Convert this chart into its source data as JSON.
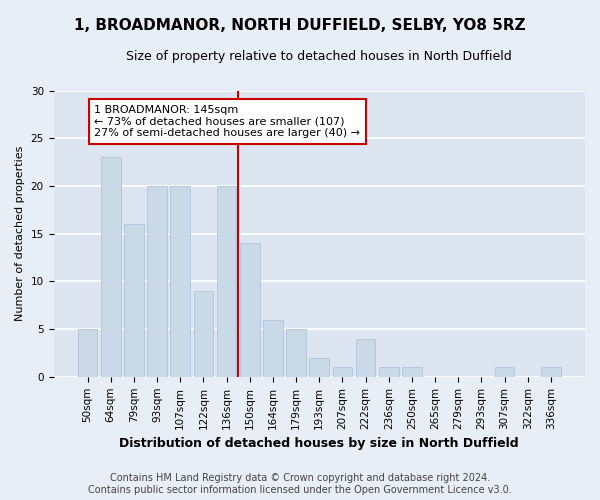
{
  "title": "1, BROADMANOR, NORTH DUFFIELD, SELBY, YO8 5RZ",
  "subtitle": "Size of property relative to detached houses in North Duffield",
  "xlabel": "Distribution of detached houses by size in North Duffield",
  "ylabel": "Number of detached properties",
  "categories": [
    "50sqm",
    "64sqm",
    "79sqm",
    "93sqm",
    "107sqm",
    "122sqm",
    "136sqm",
    "150sqm",
    "164sqm",
    "179sqm",
    "193sqm",
    "207sqm",
    "222sqm",
    "236sqm",
    "250sqm",
    "265sqm",
    "279sqm",
    "293sqm",
    "307sqm",
    "322sqm",
    "336sqm"
  ],
  "values": [
    5,
    23,
    16,
    20,
    20,
    9,
    20,
    14,
    6,
    5,
    2,
    1,
    4,
    1,
    1,
    0,
    0,
    0,
    1,
    0,
    1
  ],
  "bar_color": "#c9d9e8",
  "bar_edge_color": "#b0c4d8",
  "vline_index": 7,
  "vline_color": "#cc0000",
  "annotation_line1": "1 BROADMANOR: 145sqm",
  "annotation_line2": "← 73% of detached houses are smaller (107)",
  "annotation_line3": "27% of semi-detached houses are larger (40) →",
  "annotation_box_color": "#ffffff",
  "annotation_box_edge": "#cc0000",
  "ylim": [
    0,
    30
  ],
  "yticks": [
    0,
    5,
    10,
    15,
    20,
    25,
    30
  ],
  "fig_bg_color": "#e8eef5",
  "plot_bg_color": "#dde6f0",
  "grid_color": "#ffffff",
  "footer_line1": "Contains HM Land Registry data © Crown copyright and database right 2024.",
  "footer_line2": "Contains public sector information licensed under the Open Government Licence v3.0.",
  "title_fontsize": 11,
  "subtitle_fontsize": 9,
  "xlabel_fontsize": 9,
  "ylabel_fontsize": 8,
  "tick_fontsize": 7.5,
  "annotation_fontsize": 8,
  "footer_fontsize": 7
}
